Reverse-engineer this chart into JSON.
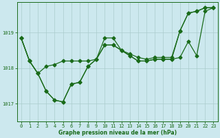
{
  "background_color": "#cce8ee",
  "grid_color": "#aacccc",
  "line_color": "#1a6b1a",
  "xlabel": "Graphe pression niveau de la mer (hPa)",
  "ylim": [
    1016.5,
    1019.85
  ],
  "xlim": [
    -0.5,
    23.5
  ],
  "yticks": [
    1017,
    1018,
    1019
  ],
  "xticks": [
    0,
    1,
    2,
    3,
    4,
    5,
    6,
    7,
    8,
    9,
    10,
    11,
    12,
    13,
    14,
    15,
    16,
    17,
    18,
    19,
    20,
    21,
    22,
    23
  ],
  "series": [
    {
      "x": [
        0,
        1,
        2,
        3,
        4,
        5,
        6,
        7,
        8,
        9,
        10,
        11,
        12,
        13,
        14,
        15,
        16,
        17,
        18,
        19,
        20,
        21,
        22,
        23
      ],
      "y": [
        1018.85,
        1018.2,
        1017.85,
        1017.35,
        1017.1,
        1017.05,
        1017.55,
        1017.6,
        1018.05,
        1018.25,
        1018.65,
        1018.65,
        1018.5,
        1018.35,
        1018.2,
        1018.2,
        1018.25,
        1018.25,
        1018.25,
        1018.3,
        1018.75,
        1018.35,
        1019.6,
        1019.7
      ]
    },
    {
      "x": [
        0,
        1,
        2,
        3,
        4,
        5,
        6,
        7,
        8,
        9,
        10,
        11,
        12,
        13,
        14,
        15,
        16,
        17,
        18,
        19,
        20,
        21,
        22,
        23
      ],
      "y": [
        1018.85,
        1018.2,
        1017.85,
        1018.05,
        1018.1,
        1018.2,
        1018.2,
        1018.2,
        1018.2,
        1018.25,
        1018.85,
        1018.85,
        1018.5,
        1018.4,
        1018.3,
        1018.25,
        1018.3,
        1018.3,
        1018.3,
        1019.05,
        1019.55,
        1019.6,
        1019.7,
        1019.7
      ]
    },
    {
      "x": [
        0,
        1,
        2,
        3,
        4,
        5,
        6,
        7,
        8,
        9,
        10,
        11,
        12,
        13,
        14,
        15,
        16,
        17,
        18,
        19,
        20,
        21,
        22,
        23
      ],
      "y": [
        1018.85,
        1018.2,
        1017.85,
        1017.35,
        1017.1,
        1017.05,
        1017.55,
        1017.6,
        1018.05,
        1018.25,
        1018.65,
        1018.65,
        1018.5,
        1018.35,
        1018.2,
        1018.2,
        1018.25,
        1018.25,
        1018.25,
        1019.05,
        1019.55,
        1019.6,
        1019.7,
        1019.7
      ]
    }
  ],
  "marker_size": 2.5,
  "line_width": 0.9,
  "tick_labelsize": 5,
  "xlabel_fontsize": 5.5
}
